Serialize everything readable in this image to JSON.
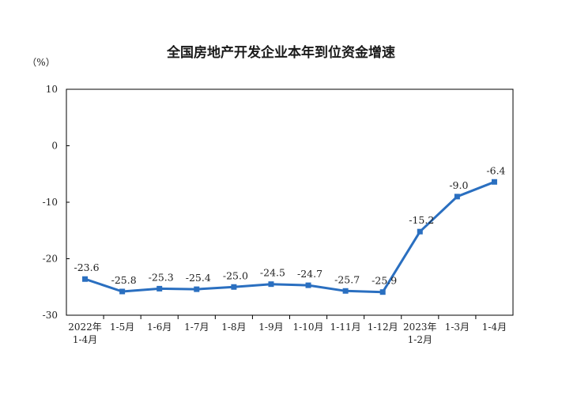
{
  "chart_data": {
    "type": "line",
    "title": "全国房地产开发企业本年到位资金增速",
    "ylabel": "（%）",
    "xlabel": "",
    "ylim": [
      -30,
      10
    ],
    "yticks": [
      10,
      0,
      -10,
      -20,
      -30
    ],
    "grid": false,
    "legend": "none",
    "categories": [
      [
        "2022年",
        "1-4月"
      ],
      [
        "1-5月"
      ],
      [
        "1-6月"
      ],
      [
        "1-7月"
      ],
      [
        "1-8月"
      ],
      [
        "1-9月"
      ],
      [
        "1-10月"
      ],
      [
        "1-11月"
      ],
      [
        "1-12月"
      ],
      [
        "2023年",
        "1-2月"
      ],
      [
        "1-3月"
      ],
      [
        "1-4月"
      ]
    ],
    "series": [
      {
        "values": [
          -23.6,
          -25.8,
          -25.3,
          -25.4,
          -25.0,
          -24.5,
          -24.7,
          -25.7,
          -25.9,
          -15.2,
          -9.0,
          -6.4
        ],
        "labels": [
          "-23.6",
          "-25.8",
          "-25.3",
          "-25.4",
          "-25.0",
          "-24.5",
          "-24.7",
          "-25.7",
          "-25.9",
          "-15.2",
          "-9.0",
          "-6.4"
        ]
      }
    ],
    "colors": {
      "line": "#2a6fc0",
      "marker": "#2a6fc0",
      "axis": "#000000"
    }
  }
}
